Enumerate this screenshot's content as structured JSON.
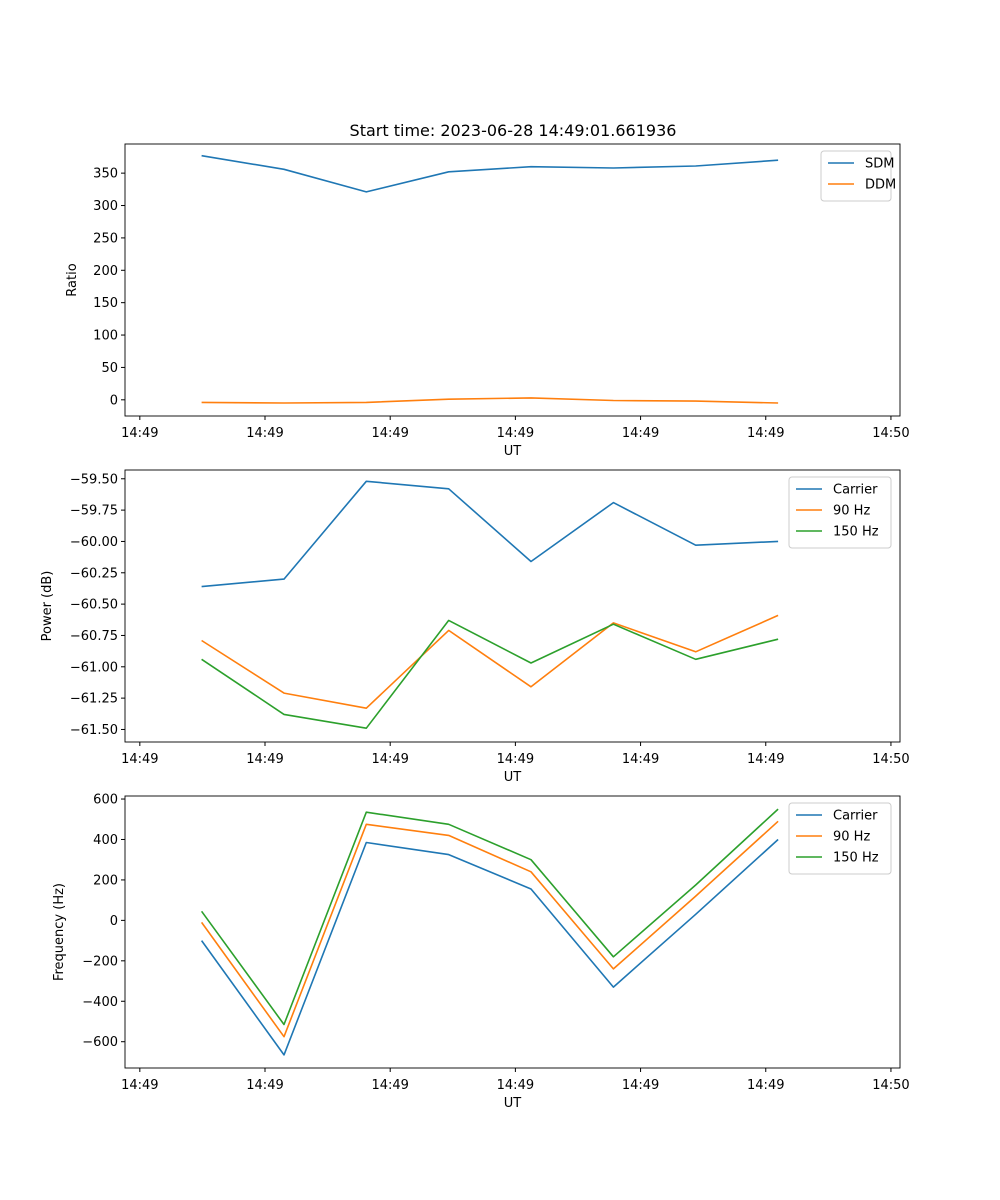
{
  "title": "Start time: 2023-06-28 14:49:01.661936",
  "colors": {
    "blue": "#1f77b4",
    "orange": "#ff7f0e",
    "green": "#2ca02c"
  },
  "chart_data": [
    {
      "type": "line",
      "x": [
        0,
        1,
        2,
        3,
        4,
        5,
        6,
        7
      ],
      "x_tick_positions": [
        -0.75,
        0.77,
        2.29,
        3.81,
        5.33,
        6.85,
        8.37
      ],
      "x_tick_labels": [
        "14:49",
        "14:49",
        "14:49",
        "14:49",
        "14:49",
        "14:49",
        "14:50"
      ],
      "xlim": [
        -0.93,
        8.48
      ],
      "xlabel": "UT",
      "ylabel": "Ratio",
      "ylim": [
        -25,
        395
      ],
      "yticks": [
        0,
        50,
        100,
        150,
        200,
        250,
        300,
        350
      ],
      "ytick_labels": [
        "0",
        "50",
        "100",
        "150",
        "200",
        "250",
        "300",
        "350"
      ],
      "legend_position": "upper right",
      "series": [
        {
          "name": "SDM",
          "color": "#1f77b4",
          "values": [
            377,
            356,
            321,
            352,
            360,
            358,
            361,
            370
          ]
        },
        {
          "name": "DDM",
          "color": "#ff7f0e",
          "values": [
            -4,
            -5,
            -4,
            1,
            3,
            -1,
            -2,
            -5
          ]
        }
      ]
    },
    {
      "type": "line",
      "x": [
        0,
        1,
        2,
        3,
        4,
        5,
        6,
        7
      ],
      "x_tick_positions": [
        -0.75,
        0.77,
        2.29,
        3.81,
        5.33,
        6.85,
        8.37
      ],
      "x_tick_labels": [
        "14:49",
        "14:49",
        "14:49",
        "14:49",
        "14:49",
        "14:49",
        "14:50"
      ],
      "xlim": [
        -0.93,
        8.48
      ],
      "xlabel": "UT",
      "ylabel": "Power (dB)",
      "ylim": [
        -61.6,
        -59.43
      ],
      "yticks": [
        -61.5,
        -61.25,
        -61.0,
        -60.75,
        -60.5,
        -60.25,
        -60.0,
        -59.75,
        -59.5
      ],
      "ytick_labels": [
        "−61.50",
        "−61.25",
        "−61.00",
        "−60.75",
        "−60.50",
        "−60.25",
        "−60.00",
        "−59.75",
        "−59.50"
      ],
      "legend_position": "upper right",
      "series": [
        {
          "name": "Carrier",
          "color": "#1f77b4",
          "values": [
            -60.36,
            -60.3,
            -59.52,
            -59.58,
            -60.16,
            -59.69,
            -60.03,
            -60.0
          ]
        },
        {
          "name": "90 Hz",
          "color": "#ff7f0e",
          "values": [
            -60.79,
            -61.21,
            -61.33,
            -60.71,
            -61.16,
            -60.65,
            -60.88,
            -60.59
          ]
        },
        {
          "name": "150 Hz",
          "color": "#2ca02c",
          "values": [
            -60.94,
            -61.38,
            -61.49,
            -60.63,
            -60.97,
            -60.66,
            -60.94,
            -60.78
          ]
        }
      ]
    },
    {
      "type": "line",
      "x": [
        0,
        1,
        2,
        3,
        4,
        5,
        6,
        7
      ],
      "x_tick_positions": [
        -0.75,
        0.77,
        2.29,
        3.81,
        5.33,
        6.85,
        8.37
      ],
      "x_tick_labels": [
        "14:49",
        "14:49",
        "14:49",
        "14:49",
        "14:49",
        "14:49",
        "14:50"
      ],
      "xlim": [
        -0.93,
        8.48
      ],
      "xlabel": "UT",
      "ylabel": "Frequency (Hz)",
      "ylim": [
        -730,
        615
      ],
      "yticks": [
        -600,
        -400,
        -200,
        0,
        200,
        400,
        600
      ],
      "ytick_labels": [
        "−600",
        "−400",
        "−200",
        "0",
        "200",
        "400",
        "600"
      ],
      "legend_position": "upper right",
      "series": [
        {
          "name": "Carrier",
          "color": "#1f77b4",
          "values": [
            -100,
            -665,
            385,
            325,
            155,
            -330,
            30,
            400
          ]
        },
        {
          "name": "90 Hz",
          "color": "#ff7f0e",
          "values": [
            -10,
            -575,
            475,
            420,
            240,
            -240,
            120,
            490
          ]
        },
        {
          "name": "150 Hz",
          "color": "#2ca02c",
          "values": [
            45,
            -515,
            535,
            475,
            300,
            -180,
            175,
            550
          ]
        }
      ]
    }
  ]
}
